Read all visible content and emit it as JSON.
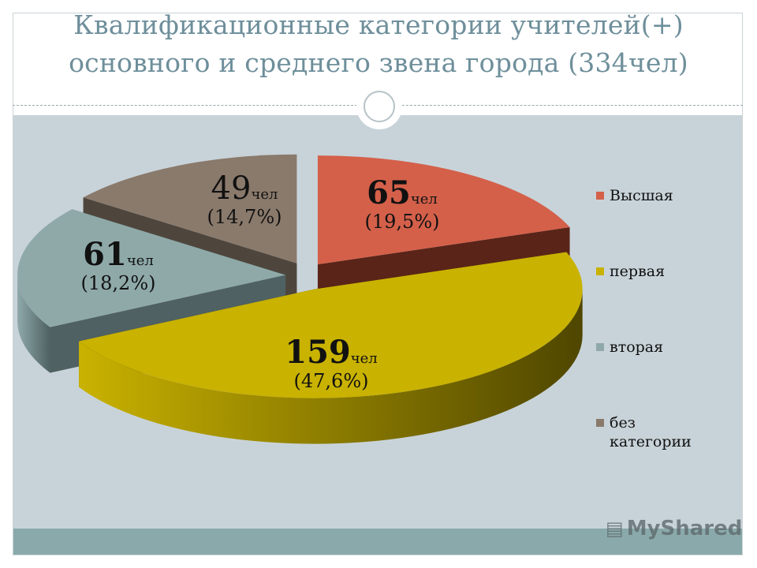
{
  "title": {
    "line1": "Квалификационные категории  учителей(+)",
    "line2": "основного и среднего звена города (334чел)"
  },
  "chart_data": {
    "type": "pie",
    "style": "3d-exploded",
    "legend_position": "right",
    "categories": [
      "Высшая",
      "первая",
      "вторая",
      "без категории"
    ],
    "values": [
      65,
      159,
      61,
      49
    ],
    "percents": [
      "(19,5%)",
      "(47,6%)",
      "(18,2%)",
      "(14,7%)"
    ],
    "unit": "чел",
    "colors": [
      "#d4604a",
      "#c9b200",
      "#8fa9a9",
      "#8a7a6c"
    ],
    "side_colors": [
      "#5a2418",
      "#4f4600",
      "#4f6162",
      "#4e463d"
    ]
  },
  "legend": {
    "items": [
      {
        "label": "Высшая",
        "label2": ""
      },
      {
        "label": "первая",
        "label2": ""
      },
      {
        "label": "вторая",
        "label2": ""
      },
      {
        "label": "без",
        "label2": "категории"
      }
    ]
  },
  "watermark": {
    "text": "MyShared",
    "icon": "presentation-icon"
  }
}
